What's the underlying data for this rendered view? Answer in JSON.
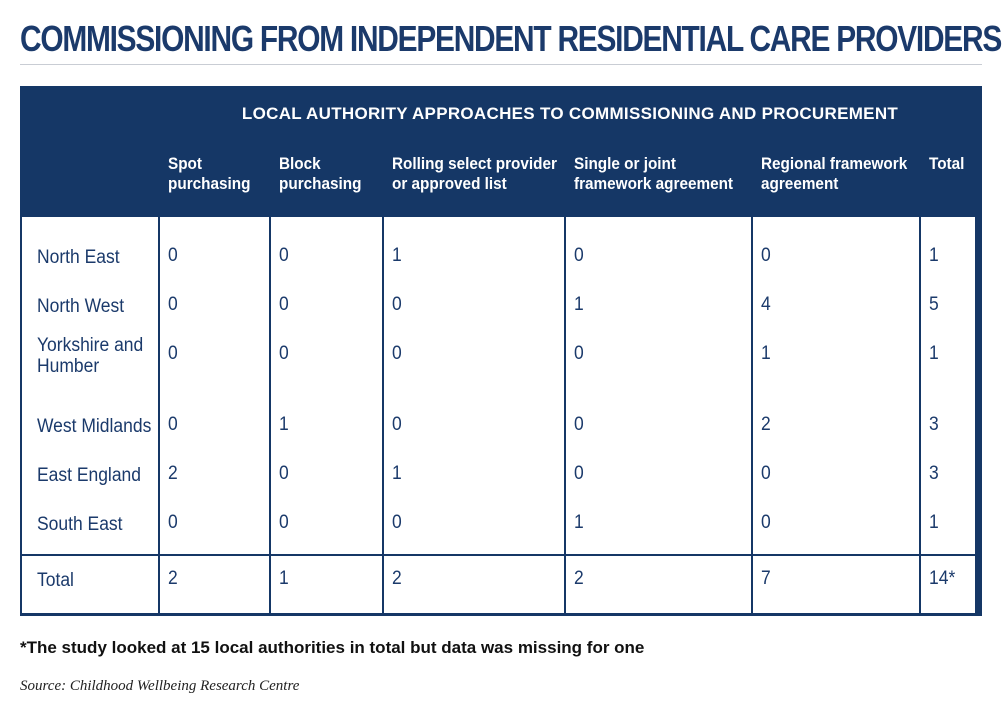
{
  "title": "COMMISSIONING FROM INDEPENDENT RESIDENTIAL CARE PROVIDERS",
  "footnote": "*The study looked at 15 local authorities in total but data was missing for one",
  "source": "Source: Childhood Wellbeing Research Centre",
  "colors": {
    "navy": "#153766",
    "text": "#1b3a6b",
    "white": "#ffffff"
  },
  "chart_data": {
    "type": "table",
    "super_header": "LOCAL AUTHORITY APPROACHES TO COMMISSIONING AND PROCUREMENT",
    "columns": [
      {
        "l1": "Spot",
        "l2": "purchasing"
      },
      {
        "l1": "Block",
        "l2": "purchasing"
      },
      {
        "l1": "Rolling select provider",
        "l2": "or approved list"
      },
      {
        "l1": "Single or joint",
        "l2": "framework agreement"
      },
      {
        "l1": "Regional framework",
        "l2": "agreement"
      },
      {
        "l1": "Total",
        "l2": ""
      }
    ],
    "rows": [
      {
        "l1": "North East",
        "l2": "",
        "values": [
          "0",
          "0",
          "1",
          "0",
          "0",
          "1"
        ]
      },
      {
        "l1": "North West",
        "l2": "",
        "values": [
          "0",
          "0",
          "0",
          "1",
          "4",
          "5"
        ]
      },
      {
        "l1": "Yorkshire and",
        "l2": "Humber",
        "values": [
          "0",
          "0",
          "0",
          "0",
          "1",
          "1"
        ]
      },
      {
        "l1": "West Midlands",
        "l2": "",
        "values": [
          "0",
          "1",
          "0",
          "0",
          "2",
          "3"
        ]
      },
      {
        "l1": "East England",
        "l2": "",
        "values": [
          "2",
          "0",
          "1",
          "0",
          "0",
          "3"
        ]
      },
      {
        "l1": "South East",
        "l2": "",
        "values": [
          "0",
          "0",
          "0",
          "1",
          "0",
          "1"
        ]
      }
    ],
    "total_row": {
      "label": "Total",
      "values": [
        "2",
        "1",
        "2",
        "2",
        "7",
        "14*"
      ]
    }
  }
}
